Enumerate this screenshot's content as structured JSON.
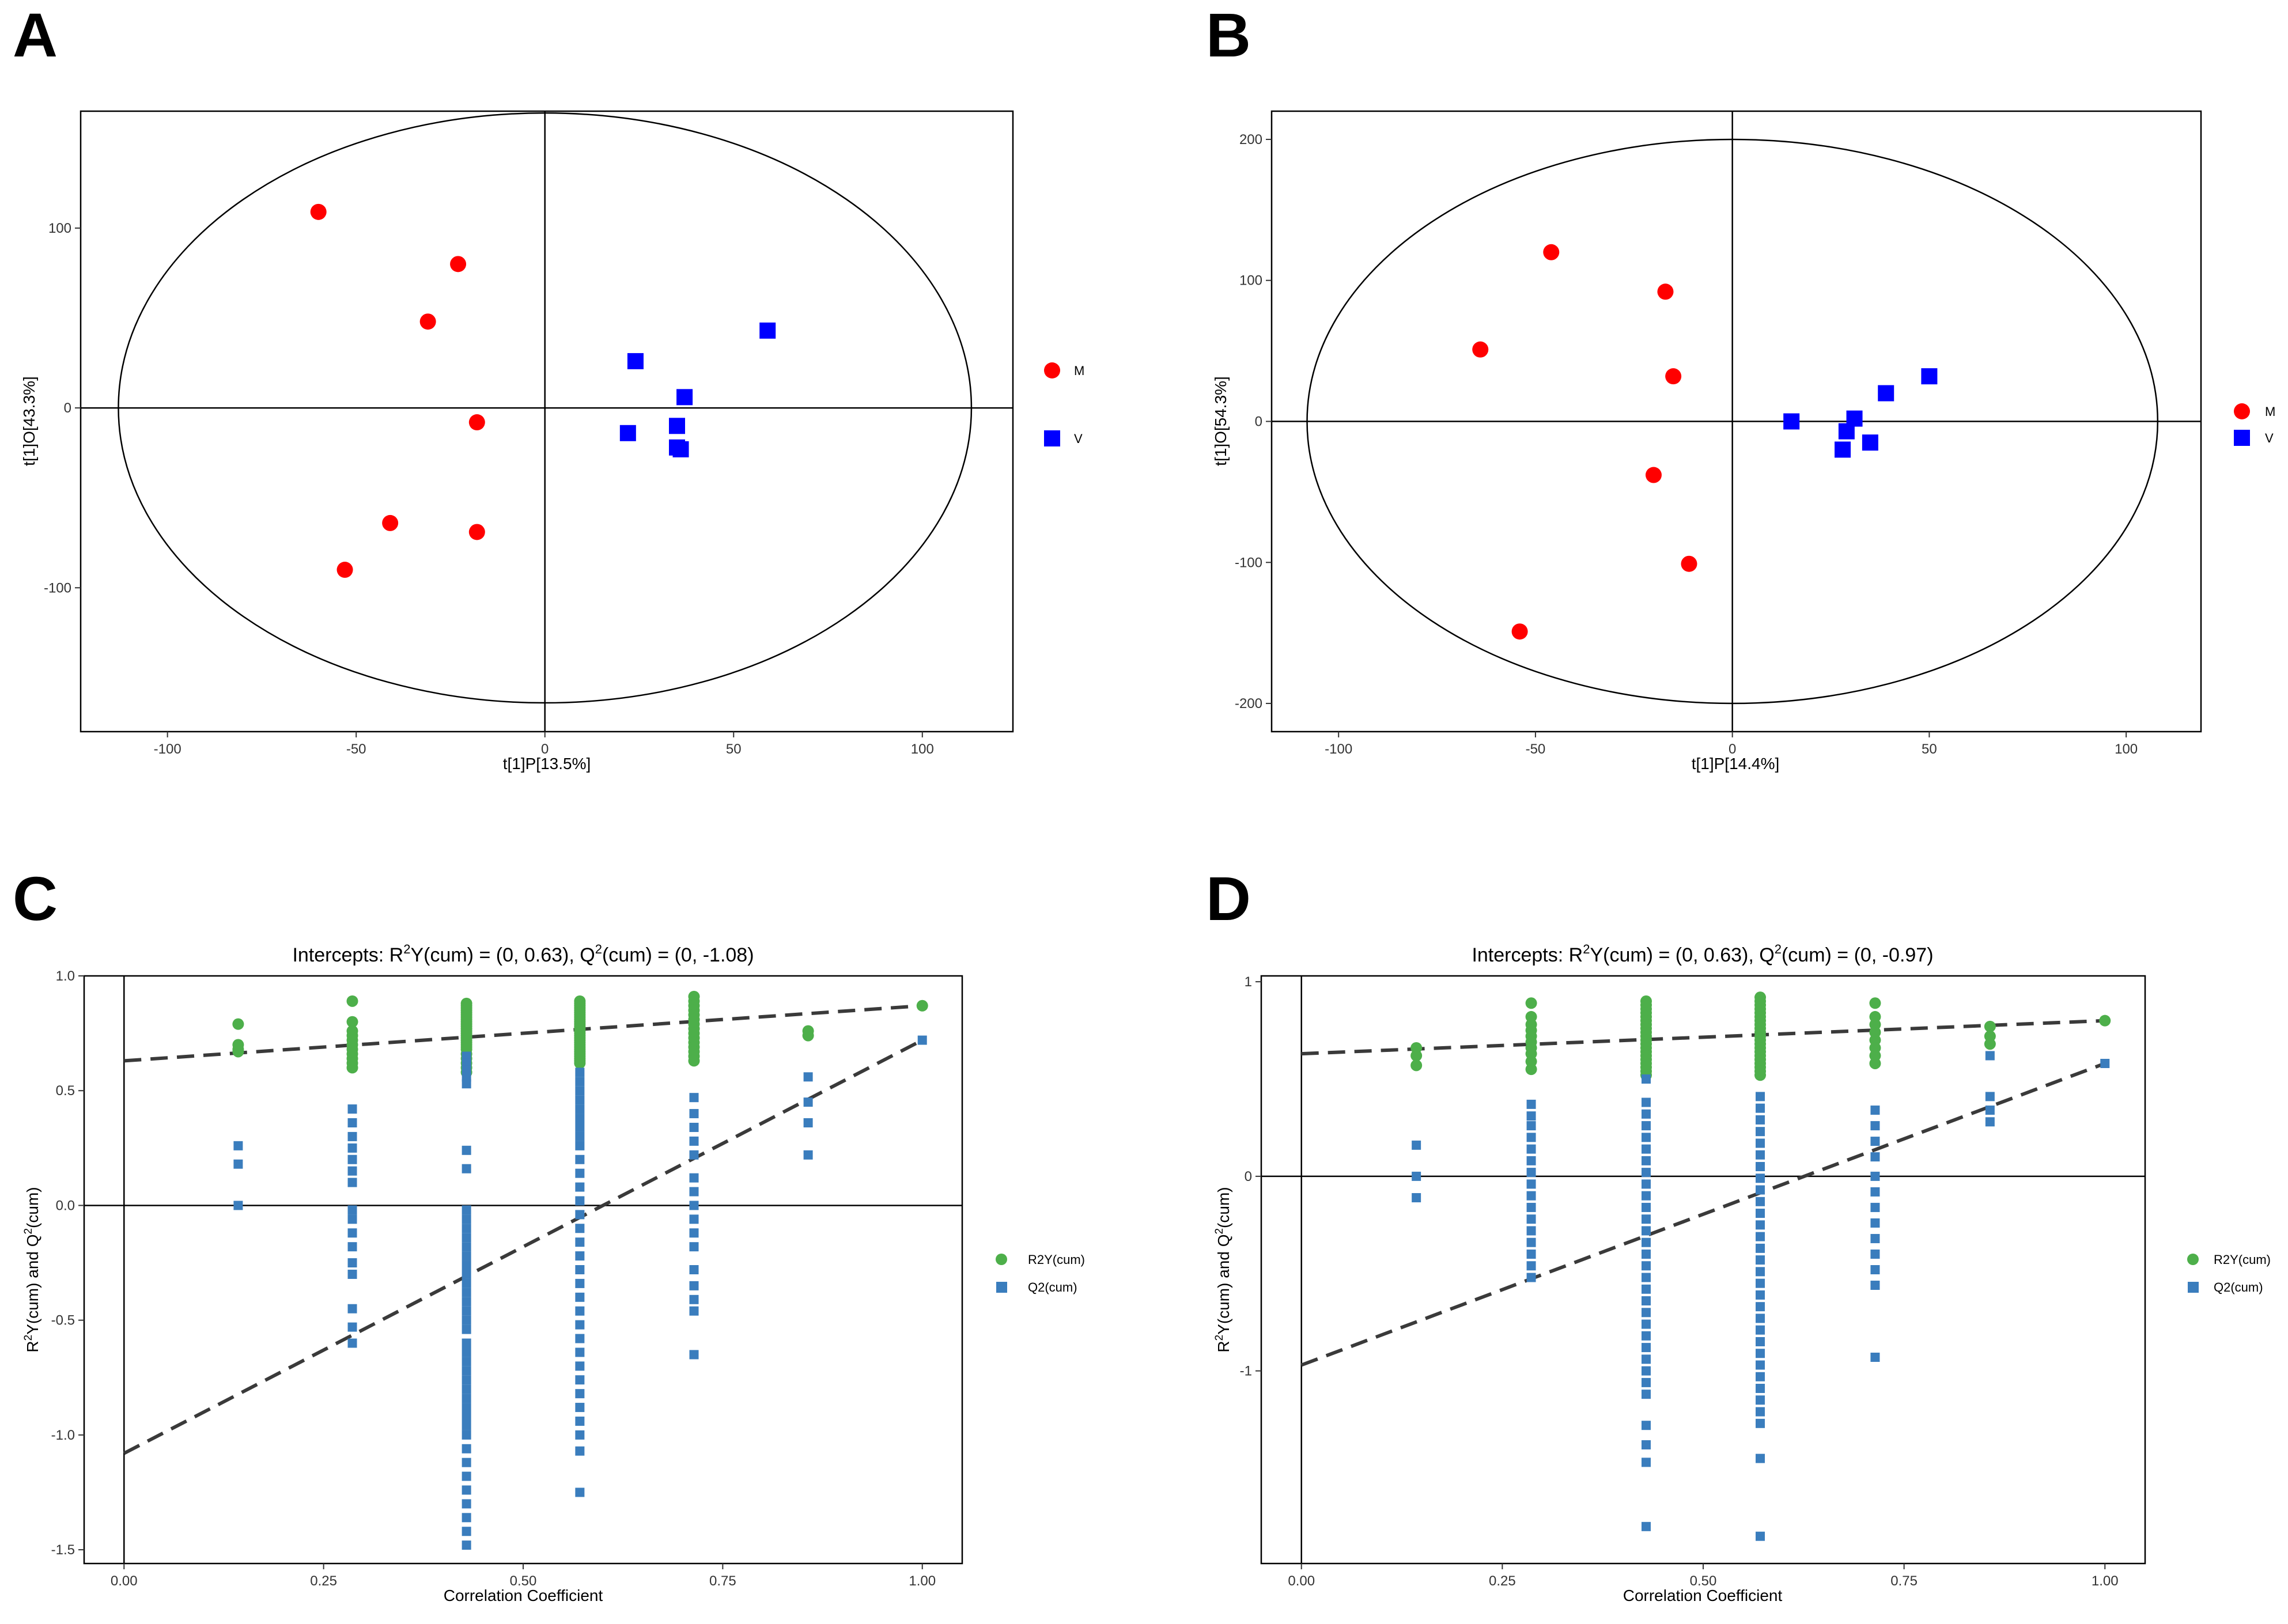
{
  "colors": {
    "group_m": "#ff0000",
    "group_v": "#0000ff",
    "r2y": "#4daf4a",
    "q2": "#3a7dbd",
    "dashed": "#3a3a3a",
    "axis": "#000000"
  },
  "chart_data": [
    {
      "id": "A",
      "panel_label": "A",
      "type": "scatter",
      "title": "",
      "xlabel": "t[1]P[13.5%]",
      "ylabel": "t[1]O[43.3%]",
      "xlim": [
        -123,
        124
      ],
      "ylim": [
        -180,
        165
      ],
      "xticks": [
        -100,
        -50,
        0,
        50,
        100
      ],
      "yticks": [
        -100,
        0,
        100
      ],
      "tick_labels_x": [
        "-100",
        "-50",
        "0",
        "50",
        "100"
      ],
      "tick_labels_y": [
        "-100",
        "0",
        "100"
      ],
      "ellipse": {
        "rx": 113,
        "ry": 164
      },
      "legend_position": "right",
      "series": [
        {
          "name": "M",
          "marker": "circle",
          "color": "#ff0000",
          "x": [
            -60,
            -23,
            -31,
            -18,
            -41,
            -18,
            -53
          ],
          "y": [
            109,
            80,
            48,
            -8,
            -64,
            -69,
            -90
          ]
        },
        {
          "name": "V",
          "marker": "square",
          "color": "#0000ff",
          "x": [
            59,
            24,
            37,
            22,
            35,
            35,
            36
          ],
          "y": [
            43,
            26,
            6,
            -14,
            -10,
            -22,
            -23
          ]
        }
      ]
    },
    {
      "id": "B",
      "panel_label": "B",
      "type": "scatter",
      "title": "",
      "xlabel": "t[1]P[14.4%]",
      "ylabel": "t[1]O[54.3%]",
      "xlim": [
        -117,
        119
      ],
      "ylim": [
        -220,
        220
      ],
      "xticks": [
        -100,
        -50,
        0,
        50,
        100
      ],
      "yticks": [
        -200,
        -100,
        0,
        100,
        200
      ],
      "tick_labels_x": [
        "-100",
        "-50",
        "0",
        "50",
        "100"
      ],
      "tick_labels_y": [
        "-200",
        "-100",
        "0",
        "100",
        "200"
      ],
      "ellipse": {
        "rx": 108,
        "ry": 200
      },
      "legend_position": "right",
      "series": [
        {
          "name": "M",
          "marker": "circle",
          "color": "#ff0000",
          "x": [
            -46,
            -17,
            -64,
            -15,
            -20,
            -11,
            -54
          ],
          "y": [
            120,
            92,
            51,
            32,
            -38,
            -101,
            -149
          ]
        },
        {
          "name": "V",
          "marker": "square",
          "color": "#0000ff",
          "x": [
            50,
            39,
            15,
            31,
            29,
            35,
            28
          ],
          "y": [
            32,
            20,
            0,
            2,
            -7,
            -15,
            -20
          ]
        }
      ]
    },
    {
      "id": "C",
      "panel_label": "C",
      "type": "scatter",
      "title": "Intercepts: R²Y(cum) = (0, 0.63), Q²(cum) = (0, -1.08)",
      "title_parts": {
        "t1": "Intercepts: R",
        "t2": "2",
        "t3": "Y(cum) = (0, 0.63), Q",
        "t4": "2",
        "t5": "(cum) = (0, -1.08)"
      },
      "xlabel": "Correlation Coefficient",
      "ylabel_parts": {
        "a": "R",
        "b": "2",
        "c": "Y(cum) and Q",
        "d": "2",
        "e": "(cum)"
      },
      "xlim": [
        -0.05,
        1.05
      ],
      "ylim": [
        -1.56,
        1.0
      ],
      "xticks": [
        0,
        0.25,
        0.5,
        0.75,
        1
      ],
      "yticks": [
        -1.5,
        -1.0,
        -0.5,
        0,
        0.5,
        1.0
      ],
      "tick_labels_x": [
        "0.00",
        "0.25",
        "0.50",
        "0.75",
        "1.00"
      ],
      "tick_labels_y": [
        "-1.5",
        "-1.0",
        "-0.5",
        "0.0",
        "0.5",
        "1.0"
      ],
      "legend_position": "right",
      "series": [
        {
          "name": "R2Y(cum)",
          "marker": "circle",
          "color": "#4daf4a",
          "columns": [
            {
              "x": 0.143,
              "y": [
                0.79,
                0.7,
                0.68,
                0.67
              ]
            },
            {
              "x": 0.286,
              "y": [
                0.89,
                0.8,
                0.76,
                0.74,
                0.72,
                0.7,
                0.68,
                0.66,
                0.64,
                0.62,
                0.6
              ]
            },
            {
              "x": 0.429,
              "y": [
                0.88,
                0.87,
                0.86,
                0.85,
                0.84,
                0.83,
                0.82,
                0.81,
                0.8,
                0.79,
                0.78,
                0.77,
                0.76,
                0.75,
                0.74,
                0.73,
                0.72,
                0.71,
                0.7,
                0.69,
                0.68,
                0.66,
                0.64,
                0.62,
                0.6,
                0.58
              ]
            },
            {
              "x": 0.571,
              "y": [
                0.89,
                0.88,
                0.87,
                0.86,
                0.85,
                0.84,
                0.83,
                0.82,
                0.81,
                0.8,
                0.79,
                0.78,
                0.77,
                0.76,
                0.75,
                0.74,
                0.73,
                0.72,
                0.71,
                0.7,
                0.69,
                0.68,
                0.67,
                0.66,
                0.65,
                0.64,
                0.63,
                0.62
              ]
            },
            {
              "x": 0.714,
              "y": [
                0.91,
                0.89,
                0.87,
                0.85,
                0.83,
                0.81,
                0.79,
                0.77,
                0.75,
                0.73,
                0.71,
                0.69,
                0.67,
                0.65,
                0.63
              ]
            },
            {
              "x": 0.857,
              "y": [
                0.76,
                0.74
              ]
            },
            {
              "x": 1.0,
              "y": [
                0.87
              ]
            }
          ]
        },
        {
          "name": "Q2(cum)",
          "marker": "square",
          "color": "#3a7dbd",
          "columns": [
            {
              "x": 0.143,
              "y": [
                0.26,
                0.18,
                0.0
              ]
            },
            {
              "x": 0.286,
              "y": [
                0.42,
                0.36,
                0.3,
                0.25,
                0.2,
                0.15,
                0.1,
                -0.02,
                -0.06,
                -0.12,
                -0.18,
                -0.25,
                -0.3,
                -0.45,
                -0.53,
                -0.6
              ]
            },
            {
              "x": 0.429,
              "y": [
                0.65,
                0.62,
                0.59,
                0.56,
                0.53,
                0.24,
                0.16,
                -0.02,
                -0.06,
                -0.1,
                -0.14,
                -0.18,
                -0.22,
                -0.26,
                -0.3,
                -0.34,
                -0.38,
                -0.42,
                -0.46,
                -0.5,
                -0.54,
                -0.6,
                -0.64,
                -0.68,
                -0.72,
                -0.76,
                -0.8,
                -0.84,
                -0.88,
                -0.92,
                -0.96,
                -1.0,
                -1.06,
                -1.12,
                -1.18,
                -1.24,
                -1.3,
                -1.36,
                -1.42,
                -1.48
              ]
            },
            {
              "x": 0.571,
              "y": [
                0.58,
                0.54,
                0.5,
                0.46,
                0.42,
                0.38,
                0.34,
                0.3,
                0.26,
                0.2,
                0.14,
                0.08,
                0.02,
                -0.04,
                -0.1,
                -0.16,
                -0.22,
                -0.28,
                -0.34,
                -0.4,
                -0.46,
                -0.52,
                -0.58,
                -0.64,
                -0.7,
                -0.76,
                -0.82,
                -0.88,
                -0.94,
                -1.0,
                -1.07,
                -1.25
              ]
            },
            {
              "x": 0.714,
              "y": [
                0.47,
                0.4,
                0.34,
                0.28,
                0.22,
                0.12,
                0.06,
                0.0,
                -0.06,
                -0.12,
                -0.18,
                -0.28,
                -0.35,
                -0.41,
                -0.46,
                -0.65
              ]
            },
            {
              "x": 0.857,
              "y": [
                0.56,
                0.45,
                0.36,
                0.22
              ]
            },
            {
              "x": 1.0,
              "y": [
                0.72
              ]
            }
          ]
        }
      ],
      "trend_lines": [
        {
          "name": "R2Y(cum)",
          "intercept": 0.63,
          "end": [
            1.0,
            0.87
          ]
        },
        {
          "name": "Q2(cum)",
          "intercept": -1.08,
          "end": [
            1.0,
            0.72
          ]
        }
      ]
    },
    {
      "id": "D",
      "panel_label": "D",
      "type": "scatter",
      "title": "Intercepts: R²Y(cum) = (0, 0.63), Q²(cum) = (0, -0.97)",
      "title_parts": {
        "t1": "Intercepts: R",
        "t2": "2",
        "t3": "Y(cum) = (0, 0.63), Q",
        "t4": "2",
        "t5": "(cum) = (0, -0.97)"
      },
      "xlabel": "Correlation Coefficient",
      "ylabel_parts": {
        "a": "R",
        "b": "2",
        "c": "Y(cum) and Q",
        "d": "2",
        "e": "(cum)"
      },
      "xlim": [
        -0.05,
        1.05
      ],
      "ylim": [
        -1.99,
        1.03
      ],
      "xticks": [
        0,
        0.25,
        0.5,
        0.75,
        1
      ],
      "yticks": [
        -1,
        0,
        1
      ],
      "tick_labels_x": [
        "0.00",
        "0.25",
        "0.50",
        "0.75",
        "1.00"
      ],
      "tick_labels_y": [
        "-1",
        "0",
        "1"
      ],
      "legend_position": "right",
      "series": [
        {
          "name": "R2Y(cum)",
          "marker": "circle",
          "color": "#4daf4a",
          "columns": [
            {
              "x": 0.143,
              "y": [
                0.66,
                0.62,
                0.57
              ]
            },
            {
              "x": 0.286,
              "y": [
                0.89,
                0.82,
                0.78,
                0.75,
                0.72,
                0.69,
                0.66,
                0.63,
                0.59,
                0.55
              ]
            },
            {
              "x": 0.429,
              "y": [
                0.9,
                0.88,
                0.86,
                0.84,
                0.82,
                0.8,
                0.78,
                0.76,
                0.74,
                0.72,
                0.7,
                0.68,
                0.66,
                0.64,
                0.62,
                0.6,
                0.58,
                0.56,
                0.54,
                0.52
              ]
            },
            {
              "x": 0.571,
              "y": [
                0.92,
                0.9,
                0.88,
                0.86,
                0.84,
                0.82,
                0.8,
                0.78,
                0.76,
                0.74,
                0.72,
                0.7,
                0.68,
                0.66,
                0.64,
                0.62,
                0.6,
                0.58,
                0.56,
                0.54,
                0.52
              ]
            },
            {
              "x": 0.714,
              "y": [
                0.89,
                0.82,
                0.78,
                0.74,
                0.7,
                0.66,
                0.62,
                0.58
              ]
            },
            {
              "x": 0.857,
              "y": [
                0.77,
                0.72,
                0.68
              ]
            },
            {
              "x": 1.0,
              "y": [
                0.8
              ]
            }
          ]
        },
        {
          "name": "Q2(cum)",
          "marker": "square",
          "color": "#3a7dbd",
          "columns": [
            {
              "x": 0.143,
              "y": [
                0.16,
                0.0,
                -0.11
              ]
            },
            {
              "x": 0.286,
              "y": [
                0.37,
                0.31,
                0.26,
                0.2,
                0.14,
                0.08,
                0.02,
                -0.04,
                -0.1,
                -0.16,
                -0.22,
                -0.28,
                -0.34,
                -0.4,
                -0.46,
                -0.52
              ]
            },
            {
              "x": 0.429,
              "y": [
                0.5,
                0.38,
                0.32,
                0.26,
                0.2,
                0.14,
                0.08,
                0.02,
                -0.04,
                -0.1,
                -0.16,
                -0.22,
                -0.28,
                -0.34,
                -0.4,
                -0.46,
                -0.52,
                -0.58,
                -0.64,
                -0.7,
                -0.76,
                -0.82,
                -0.88,
                -0.94,
                -1.0,
                -1.06,
                -1.12,
                -1.28,
                -1.38,
                -1.47,
                -1.8
              ]
            },
            {
              "x": 0.571,
              "y": [
                0.41,
                0.35,
                0.29,
                0.23,
                0.17,
                0.11,
                0.05,
                -0.01,
                -0.07,
                -0.13,
                -0.19,
                -0.25,
                -0.31,
                -0.37,
                -0.43,
                -0.49,
                -0.55,
                -0.61,
                -0.67,
                -0.73,
                -0.79,
                -0.85,
                -0.91,
                -0.97,
                -1.03,
                -1.09,
                -1.15,
                -1.21,
                -1.27,
                -1.45,
                -1.85
              ]
            },
            {
              "x": 0.714,
              "y": [
                0.34,
                0.26,
                0.18,
                0.1,
                0.0,
                -0.08,
                -0.16,
                -0.24,
                -0.32,
                -0.4,
                -0.48,
                -0.56,
                -0.93
              ]
            },
            {
              "x": 0.857,
              "y": [
                0.62,
                0.41,
                0.34,
                0.28
              ]
            },
            {
              "x": 1.0,
              "y": [
                0.58
              ]
            }
          ]
        }
      ],
      "trend_lines": [
        {
          "name": "R2Y(cum)",
          "intercept": 0.63,
          "end": [
            1.0,
            0.8
          ]
        },
        {
          "name": "Q2(cum)",
          "intercept": -0.97,
          "end": [
            1.0,
            0.58
          ]
        }
      ]
    }
  ]
}
